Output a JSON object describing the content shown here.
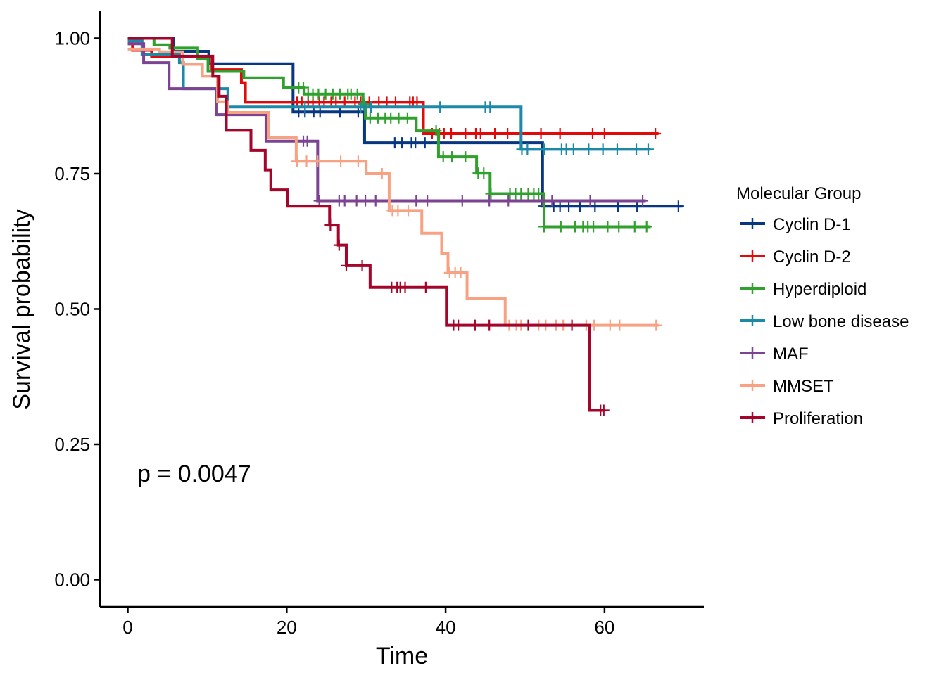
{
  "chart_data": {
    "type": "line",
    "xlabel": "Time",
    "ylabel": "Survival probability",
    "xlim": [
      -3.5,
      72.5
    ],
    "ylim": [
      -0.05,
      1.05
    ],
    "x_ticks": [
      0,
      20,
      40,
      60
    ],
    "y_ticks": [
      0.0,
      0.25,
      0.5,
      0.75,
      1.0
    ],
    "x_tick_labels": [
      "0",
      "20",
      "40",
      "60"
    ],
    "y_tick_labels": [
      "0.00",
      "0.25",
      "0.50",
      "0.75",
      "1.00"
    ],
    "grid": false,
    "legend_title": "Molecular Group",
    "legend_position": "right",
    "annotation": "p = 0.0047",
    "annotation_pos": [
      1.5,
      0.19
    ],
    "series": [
      {
        "name": "Cyclin D-1",
        "color": "#073780",
        "steps": [
          [
            0,
            1.0
          ],
          [
            5.8,
            0.976
          ],
          [
            10.2,
            0.953
          ],
          [
            20.8,
            0.864
          ],
          [
            29.8,
            0.807
          ],
          [
            52.2,
            0.69
          ],
          [
            69.8,
            0.69
          ]
        ],
        "censor": [
          21.5,
          22.3,
          23.4,
          24.2,
          26.7,
          29.0,
          33.6,
          34.5,
          35.7,
          36.2,
          37.4,
          52.4,
          53.6,
          54.4,
          55.5,
          56.9,
          58.8,
          61.7,
          64.1,
          69.3
        ]
      },
      {
        "name": "Cyclin D-2",
        "color": "#e10a0a",
        "steps": [
          [
            0,
            0.99
          ],
          [
            0.6,
            0.978
          ],
          [
            2.0,
            0.978
          ],
          [
            3.0,
            0.966
          ],
          [
            10.6,
            0.942
          ],
          [
            14.3,
            0.918
          ],
          [
            14.8,
            0.882
          ],
          [
            37.2,
            0.824
          ],
          [
            66.8,
            0.824
          ]
        ],
        "censor": [
          21.3,
          21.9,
          22.7,
          23.3,
          24.1,
          24.7,
          25.6,
          26.2,
          27.3,
          28.6,
          29.3,
          30.4,
          31.6,
          32.6,
          33.7,
          35.5,
          35.9,
          36.4,
          38.3,
          39.2,
          39.8,
          40.7,
          42.5,
          43.8,
          44.4,
          46.2,
          47.8,
          52.0,
          54.4,
          58.5,
          60.0,
          66.4
        ]
      },
      {
        "name": "Hyperdiploid",
        "color": "#2fa12c",
        "steps": [
          [
            0,
            1.0
          ],
          [
            3.3,
            0.988
          ],
          [
            5.3,
            0.982
          ],
          [
            8.8,
            0.963
          ],
          [
            10.1,
            0.939
          ],
          [
            14.6,
            0.927
          ],
          [
            19.6,
            0.909
          ],
          [
            22.2,
            0.897
          ],
          [
            29.6,
            0.878
          ],
          [
            29.9,
            0.853
          ],
          [
            34.4,
            0.853
          ],
          [
            36.3,
            0.829
          ],
          [
            38.1,
            0.829
          ],
          [
            39.1,
            0.781
          ],
          [
            43.9,
            0.751
          ],
          [
            45.6,
            0.713
          ],
          [
            52.4,
            0.652
          ],
          [
            65.8,
            0.652
          ]
        ],
        "censor": [
          21.5,
          22.1,
          22.7,
          23.3,
          24.0,
          24.9,
          25.8,
          26.7,
          27.7,
          28.1,
          28.9,
          29.7,
          30.5,
          31.5,
          32.4,
          33.1,
          34.1,
          35.2,
          38.8,
          39.7,
          40.8,
          42.5,
          44.1,
          44.8,
          45.7,
          48.1,
          48.8,
          49.5,
          50.4,
          51.1,
          51.7,
          52.4,
          54.5,
          56.3,
          57.3,
          57.9,
          58.6,
          60.4,
          61.8,
          63.8,
          65.3
        ]
      },
      {
        "name": "Low bone disease",
        "color": "#1b89a7",
        "steps": [
          [
            0,
            0.995
          ],
          [
            1.8,
            0.97
          ],
          [
            6.5,
            0.955
          ],
          [
            7.0,
            0.907
          ],
          [
            12.6,
            0.873
          ],
          [
            49.5,
            0.795
          ],
          [
            65.8,
            0.795
          ]
        ],
        "censor": [
          22.3,
          29.3,
          29.9,
          30.6,
          39.3,
          45.0,
          45.6,
          49.6,
          50.3,
          52.4,
          54.6,
          55.2,
          56.1,
          58.0,
          59.8,
          61.6,
          64.0,
          65.5
        ]
      },
      {
        "name": "MAF",
        "color": "#7b4392",
        "steps": [
          [
            0,
            0.99
          ],
          [
            2.0,
            0.955
          ],
          [
            5.2,
            0.907
          ],
          [
            11.2,
            0.859
          ],
          [
            17.4,
            0.81
          ],
          [
            23.9,
            0.7
          ],
          [
            65.2,
            0.7
          ]
        ],
        "censor": [
          22.1,
          22.6,
          24.1,
          26.6,
          27.3,
          28.8,
          29.9,
          31.2,
          32.9,
          36.3,
          37.7,
          42.1,
          45.5,
          47.9,
          52.2,
          53.4,
          58.2,
          64.8
        ]
      },
      {
        "name": "MMSET",
        "color": "#f8a284",
        "steps": [
          [
            0,
            0.98
          ],
          [
            4.0,
            0.975
          ],
          [
            6.9,
            0.952
          ],
          [
            9.4,
            0.93
          ],
          [
            11.3,
            0.883
          ],
          [
            12.6,
            0.863
          ],
          [
            17.7,
            0.817
          ],
          [
            21.2,
            0.773
          ],
          [
            30.0,
            0.75
          ],
          [
            32.9,
            0.682
          ],
          [
            37.0,
            0.64
          ],
          [
            39.5,
            0.603
          ],
          [
            40.3,
            0.567
          ],
          [
            42.7,
            0.52
          ],
          [
            47.5,
            0.47
          ],
          [
            66.8,
            0.47
          ]
        ],
        "censor": [
          21.3,
          22.5,
          23.9,
          26.8,
          29.0,
          32.0,
          33.3,
          34.0,
          35.3,
          40.5,
          41.2,
          41.9,
          48.0,
          48.9,
          49.5,
          51.7,
          52.6,
          53.9,
          54.8,
          57.7,
          58.7,
          60.7,
          61.9,
          66.5
        ]
      },
      {
        "name": "Proliferation",
        "color": "#a4052a",
        "steps": [
          [
            0,
            1.0
          ],
          [
            5.6,
            0.967
          ],
          [
            10.7,
            0.93
          ],
          [
            11.5,
            0.893
          ],
          [
            12.4,
            0.83
          ],
          [
            15.5,
            0.793
          ],
          [
            17.3,
            0.757
          ],
          [
            18.0,
            0.72
          ],
          [
            20.1,
            0.69
          ],
          [
            25.4,
            0.655
          ],
          [
            26.5,
            0.618
          ],
          [
            27.5,
            0.58
          ],
          [
            30.5,
            0.54
          ],
          [
            40.1,
            0.47
          ],
          [
            58.1,
            0.313
          ],
          [
            60.0,
            0.313
          ]
        ],
        "censor": [
          25.5,
          26.6,
          27.5,
          29.5,
          33.2,
          33.9,
          34.3,
          34.9,
          37.5,
          41.0,
          41.6,
          43.7,
          45.5,
          50.4,
          55.9,
          59.5,
          59.9
        ]
      }
    ]
  }
}
